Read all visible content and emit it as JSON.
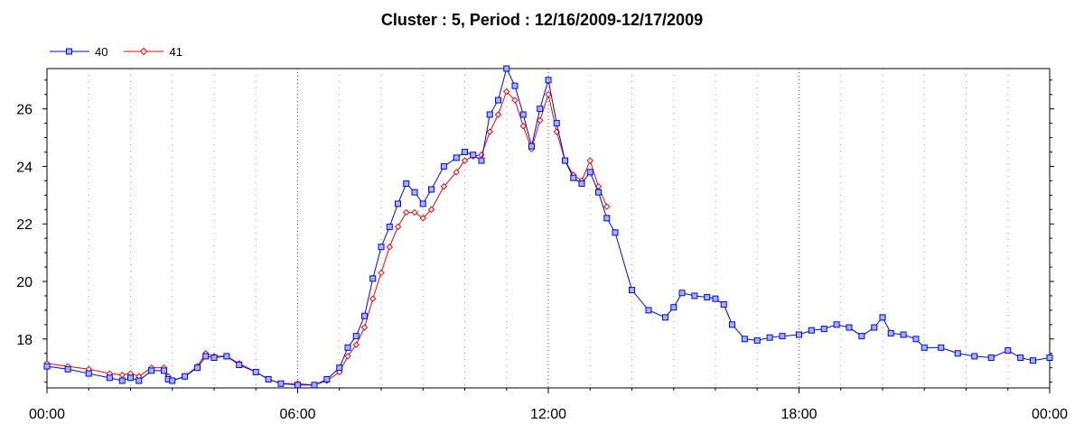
{
  "chart_data": {
    "type": "line",
    "title": "Cluster : 5, Period : 12/16/2009-12/17/2009",
    "xlabel": "",
    "ylabel": "",
    "x_ticks": [
      "00:00",
      "06:00",
      "12:00",
      "18:00",
      "00:00"
    ],
    "x_range_hours": [
      0,
      24
    ],
    "ylim": [
      16.3,
      27.4
    ],
    "y_ticks": [
      18,
      20,
      22,
      24,
      26
    ],
    "grid": "vertical dotted lines",
    "legend_position": "top-left",
    "series": [
      {
        "name": "40",
        "color": "#0000ff",
        "marker": "square",
        "points": [
          [
            0.0,
            17.05
          ],
          [
            0.5,
            16.95
          ],
          [
            1.0,
            16.8
          ],
          [
            1.5,
            16.65
          ],
          [
            1.8,
            16.55
          ],
          [
            2.0,
            16.65
          ],
          [
            2.2,
            16.55
          ],
          [
            2.5,
            16.9
          ],
          [
            2.8,
            16.9
          ],
          [
            2.9,
            16.6
          ],
          [
            3.0,
            16.55
          ],
          [
            3.3,
            16.7
          ],
          [
            3.6,
            17.0
          ],
          [
            3.8,
            17.4
          ],
          [
            4.0,
            17.35
          ],
          [
            4.3,
            17.4
          ],
          [
            4.6,
            17.1
          ],
          [
            5.0,
            16.85
          ],
          [
            5.3,
            16.6
          ],
          [
            5.6,
            16.45
          ],
          [
            6.0,
            16.4
          ],
          [
            6.4,
            16.4
          ],
          [
            6.7,
            16.6
          ],
          [
            7.0,
            17.0
          ],
          [
            7.2,
            17.7
          ],
          [
            7.4,
            18.1
          ],
          [
            7.6,
            18.8
          ],
          [
            7.8,
            20.1
          ],
          [
            8.0,
            21.2
          ],
          [
            8.2,
            21.9
          ],
          [
            8.4,
            22.7
          ],
          [
            8.6,
            23.4
          ],
          [
            8.8,
            23.1
          ],
          [
            9.0,
            22.7
          ],
          [
            9.2,
            23.2
          ],
          [
            9.5,
            24.0
          ],
          [
            9.8,
            24.3
          ],
          [
            10.0,
            24.5
          ],
          [
            10.2,
            24.4
          ],
          [
            10.4,
            24.2
          ],
          [
            10.6,
            25.8
          ],
          [
            10.8,
            26.3
          ],
          [
            11.0,
            27.4
          ],
          [
            11.2,
            26.8
          ],
          [
            11.4,
            25.8
          ],
          [
            11.6,
            24.7
          ],
          [
            11.8,
            26.0
          ],
          [
            12.0,
            27.0
          ],
          [
            12.2,
            25.5
          ],
          [
            12.4,
            24.2
          ],
          [
            12.6,
            23.6
          ],
          [
            12.8,
            23.4
          ],
          [
            13.0,
            23.8
          ],
          [
            13.2,
            23.1
          ],
          [
            13.4,
            22.2
          ],
          [
            13.6,
            21.7
          ],
          [
            14.0,
            19.7
          ],
          [
            14.4,
            19.0
          ],
          [
            14.8,
            18.75
          ],
          [
            15.0,
            19.1
          ],
          [
            15.2,
            19.6
          ],
          [
            15.5,
            19.5
          ],
          [
            15.8,
            19.45
          ],
          [
            16.0,
            19.4
          ],
          [
            16.2,
            19.2
          ],
          [
            16.4,
            18.5
          ],
          [
            16.7,
            18.0
          ],
          [
            17.0,
            17.95
          ],
          [
            17.3,
            18.05
          ],
          [
            17.6,
            18.1
          ],
          [
            18.0,
            18.15
          ],
          [
            18.3,
            18.3
          ],
          [
            18.6,
            18.35
          ],
          [
            18.9,
            18.5
          ],
          [
            19.2,
            18.4
          ],
          [
            19.5,
            18.1
          ],
          [
            19.8,
            18.4
          ],
          [
            20.0,
            18.75
          ],
          [
            20.2,
            18.2
          ],
          [
            20.5,
            18.15
          ],
          [
            20.8,
            18.0
          ],
          [
            21.0,
            17.7
          ],
          [
            21.4,
            17.7
          ],
          [
            21.8,
            17.5
          ],
          [
            22.2,
            17.4
          ],
          [
            22.6,
            17.35
          ],
          [
            23.0,
            17.6
          ],
          [
            23.3,
            17.35
          ],
          [
            23.6,
            17.25
          ],
          [
            24.0,
            17.35
          ]
        ]
      },
      {
        "name": "41",
        "color": "#ff0000",
        "marker": "diamond",
        "points": [
          [
            0.0,
            17.15
          ],
          [
            0.5,
            17.05
          ],
          [
            1.0,
            16.95
          ],
          [
            1.5,
            16.8
          ],
          [
            1.8,
            16.75
          ],
          [
            2.0,
            16.8
          ],
          [
            2.2,
            16.7
          ],
          [
            2.5,
            17.0
          ],
          [
            2.8,
            17.0
          ],
          [
            2.9,
            16.7
          ],
          [
            3.0,
            16.55
          ],
          [
            3.3,
            16.7
          ],
          [
            3.6,
            17.05
          ],
          [
            3.8,
            17.5
          ],
          [
            4.0,
            17.4
          ],
          [
            4.3,
            17.4
          ],
          [
            4.6,
            17.15
          ],
          [
            5.0,
            16.85
          ],
          [
            5.3,
            16.6
          ],
          [
            5.6,
            16.45
          ],
          [
            6.0,
            16.45
          ],
          [
            6.4,
            16.4
          ],
          [
            6.7,
            16.55
          ],
          [
            7.0,
            16.85
          ],
          [
            7.2,
            17.4
          ],
          [
            7.4,
            17.8
          ],
          [
            7.6,
            18.4
          ],
          [
            7.8,
            19.4
          ],
          [
            8.0,
            20.3
          ],
          [
            8.2,
            21.2
          ],
          [
            8.4,
            21.9
          ],
          [
            8.6,
            22.4
          ],
          [
            8.8,
            22.4
          ],
          [
            9.0,
            22.2
          ],
          [
            9.2,
            22.5
          ],
          [
            9.5,
            23.3
          ],
          [
            9.8,
            23.8
          ],
          [
            10.0,
            24.2
          ],
          [
            10.2,
            24.35
          ],
          [
            10.4,
            24.4
          ],
          [
            10.6,
            25.2
          ],
          [
            10.8,
            25.8
          ],
          [
            11.0,
            26.6
          ],
          [
            11.2,
            26.3
          ],
          [
            11.4,
            25.4
          ],
          [
            11.6,
            24.6
          ],
          [
            11.8,
            25.6
          ],
          [
            12.0,
            26.5
          ],
          [
            12.2,
            25.2
          ],
          [
            12.4,
            24.2
          ],
          [
            12.6,
            23.7
          ],
          [
            12.8,
            23.5
          ],
          [
            13.0,
            24.2
          ],
          [
            13.2,
            23.3
          ],
          [
            13.4,
            22.6
          ]
        ]
      }
    ]
  }
}
